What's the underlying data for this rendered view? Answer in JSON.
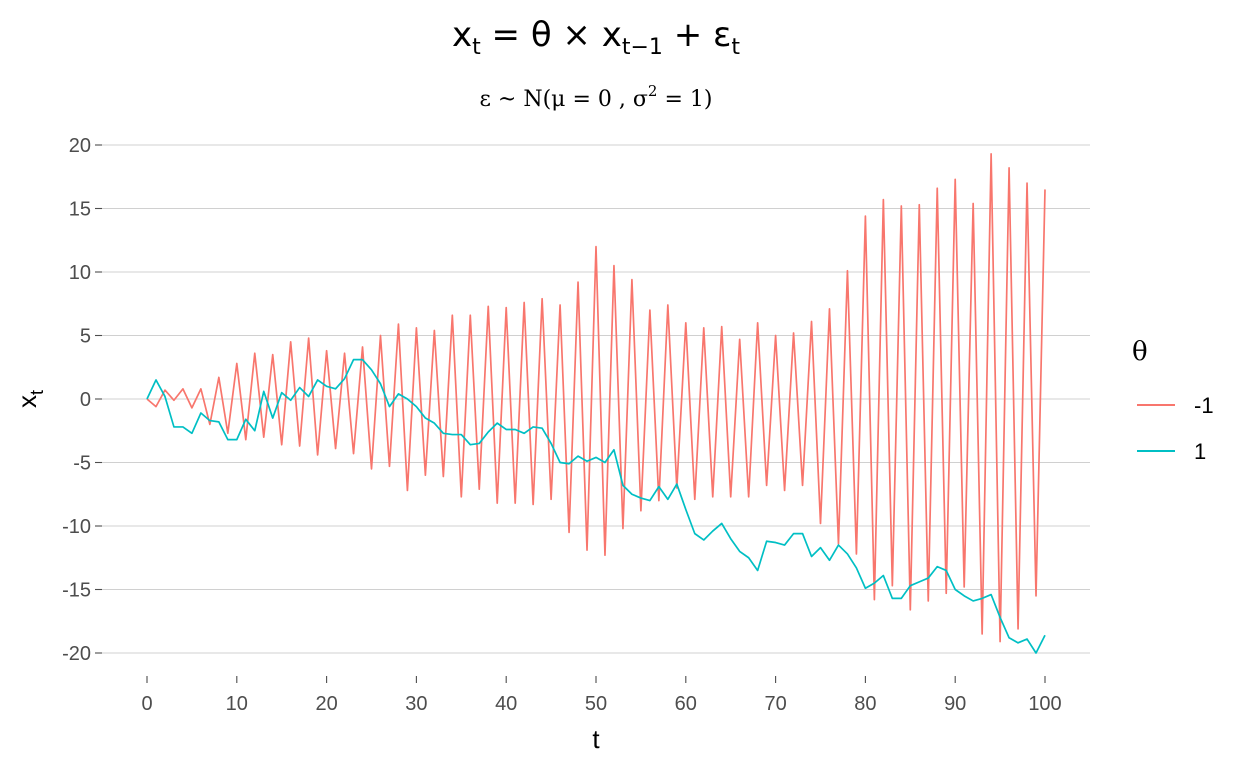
{
  "chart_data": {
    "type": "line",
    "title": "x_t = θ × x_{t−1} + ε_t",
    "subtitle": "ε ~ N(μ = 0 , σ^2 = 1)",
    "xlabel": "t",
    "ylabel": "x_t",
    "xlim": [
      0,
      100
    ],
    "ylim": [
      -21,
      21
    ],
    "x_ticks": [
      0,
      10,
      20,
      30,
      40,
      50,
      60,
      70,
      80,
      90,
      100
    ],
    "y_ticks": [
      -20,
      -15,
      -10,
      -5,
      0,
      5,
      10,
      15,
      20
    ],
    "grid": "horizontal",
    "legend": {
      "title": "θ",
      "position": "right"
    },
    "series": [
      {
        "name": "-1",
        "color": "#F8766D",
        "values": [
          0,
          -0.6,
          0.7,
          -0.1,
          0.8,
          -0.7,
          0.8,
          -2.0,
          1.7,
          -2.7,
          2.8,
          -3.2,
          3.6,
          -3.0,
          3.5,
          -3.6,
          4.5,
          -3.7,
          4.8,
          -4.4,
          3.8,
          -3.9,
          3.6,
          -4.3,
          4.1,
          -5.5,
          5.0,
          -5.3,
          5.9,
          -7.2,
          5.6,
          -6.0,
          5.4,
          -6.1,
          6.6,
          -7.7,
          6.6,
          -7.1,
          7.3,
          -8.2,
          7.2,
          -8.2,
          7.6,
          -8.3,
          7.9,
          -7.9,
          7.4,
          -10.5,
          9.2,
          -11.9,
          12.0,
          -12.3,
          10.5,
          -10.2,
          9.4,
          -8.8,
          7.0,
          -8.0,
          7.4,
          -7.0,
          6.0,
          -7.9,
          5.6,
          -7.7,
          5.7,
          -7.7,
          4.7,
          -7.7,
          6.0,
          -6.8,
          5.0,
          -7.2,
          5.2,
          -6.8,
          6.1,
          -9.8,
          7.1,
          -11.4,
          10.1,
          -12.2,
          14.4,
          -15.8,
          15.7,
          -14.7,
          15.2,
          -16.6,
          15.3,
          -15.9,
          16.6,
          -15.3,
          17.3,
          -14.8,
          15.4,
          -18.5,
          19.3,
          -19.1,
          18.2,
          -18.1,
          17.0,
          -15.5,
          16.5
        ]
      },
      {
        "name": "1",
        "color": "#00BFC4",
        "values": [
          0,
          1.5,
          0.2,
          -2.2,
          -2.2,
          -2.7,
          -1.1,
          -1.7,
          -1.8,
          -3.2,
          -3.2,
          -1.6,
          -2.5,
          0.6,
          -1.5,
          0.5,
          -0.1,
          0.9,
          0.2,
          1.5,
          1.0,
          0.8,
          1.6,
          3.1,
          3.1,
          2.3,
          1.2,
          -0.6,
          0.4,
          0.0,
          -0.6,
          -1.5,
          -1.9,
          -2.7,
          -2.8,
          -2.8,
          -3.6,
          -3.5,
          -2.6,
          -1.9,
          -2.4,
          -2.4,
          -2.7,
          -2.2,
          -2.3,
          -3.5,
          -5.0,
          -5.1,
          -4.5,
          -4.9,
          -4.6,
          -5.0,
          -4.0,
          -6.8,
          -7.5,
          -7.8,
          -8.0,
          -6.9,
          -7.9,
          -6.7,
          -8.7,
          -10.6,
          -11.1,
          -10.4,
          -9.8,
          -11.0,
          -12.0,
          -12.5,
          -13.5,
          -11.2,
          -11.3,
          -11.5,
          -10.6,
          -10.6,
          -12.4,
          -11.7,
          -12.7,
          -11.5,
          -12.2,
          -13.3,
          -14.9,
          -14.5,
          -13.9,
          -15.7,
          -15.7,
          -14.7,
          -14.4,
          -14.1,
          -13.2,
          -13.5,
          -15.0,
          -15.5,
          -15.9,
          -15.7,
          -15.4,
          -17.2,
          -18.8,
          -19.2,
          -18.9,
          -20.0,
          -18.6
        ]
      }
    ]
  }
}
